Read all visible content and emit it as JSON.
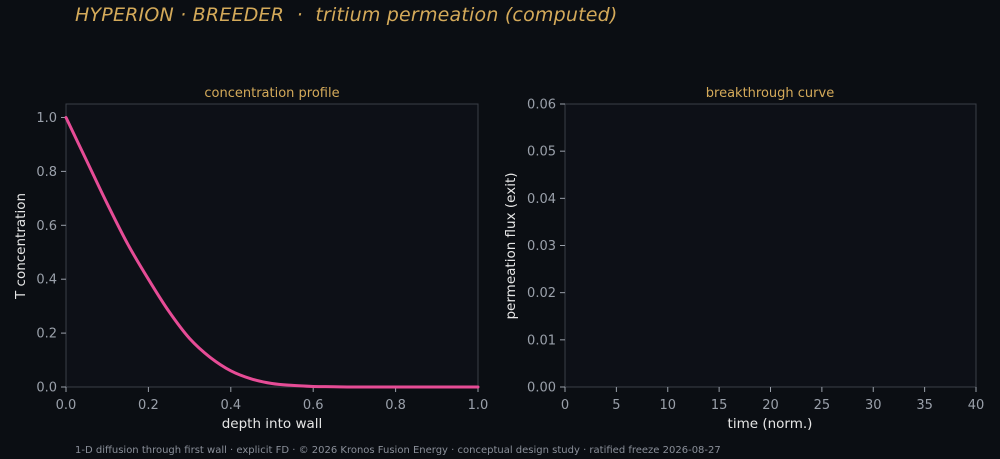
{
  "figure": {
    "title": "HYPERION · BREEDER  ·  tritium permeation (computed)",
    "footer": "1-D diffusion through first wall · explicit FD · © 2026 Kronos Fusion Energy · conceptual design study · ratified freeze 2026-08-27"
  },
  "colors": {
    "background": "#0b0e13",
    "plot_background": "#0d1017",
    "accent": "#d4aa5a",
    "curve": "#e64c96",
    "axis": "#3a3f47"
  },
  "chart_data": [
    {
      "type": "line",
      "title": "concentration profile",
      "xlabel": "depth into wall",
      "ylabel": "T concentration",
      "xlim": [
        0.0,
        1.0
      ],
      "ylim": [
        0.0,
        1.05
      ],
      "xticks": [
        "0.0",
        "0.2",
        "0.4",
        "0.6",
        "0.8",
        "1.0"
      ],
      "yticks": [
        "0.0",
        "0.2",
        "0.4",
        "0.6",
        "0.8",
        "1.0"
      ],
      "grid": false,
      "series": [
        {
          "x": [
            0.0,
            0.05,
            0.1,
            0.15,
            0.2,
            0.25,
            0.3,
            0.35,
            0.4,
            0.45,
            0.5,
            0.55,
            0.6,
            0.65,
            0.7,
            0.8,
            0.9,
            1.0
          ],
          "y": [
            1.0,
            0.84,
            0.68,
            0.53,
            0.4,
            0.28,
            0.18,
            0.11,
            0.06,
            0.03,
            0.013,
            0.006,
            0.002,
            0.001,
            0.0,
            0.0,
            0.0,
            0.0
          ]
        }
      ]
    },
    {
      "type": "line",
      "title": "breakthrough curve",
      "xlabel": "time (norm.)",
      "ylabel": "permeation flux (exit)",
      "xlim": [
        0,
        40
      ],
      "ylim": [
        0.0,
        0.06
      ],
      "xticks": [
        "0",
        "5",
        "10",
        "15",
        "20",
        "25",
        "30",
        "35",
        "40"
      ],
      "yticks": [
        "0.00",
        "0.01",
        "0.02",
        "0.03",
        "0.04",
        "0.05",
        "0.06"
      ],
      "grid": false,
      "series": []
    }
  ]
}
